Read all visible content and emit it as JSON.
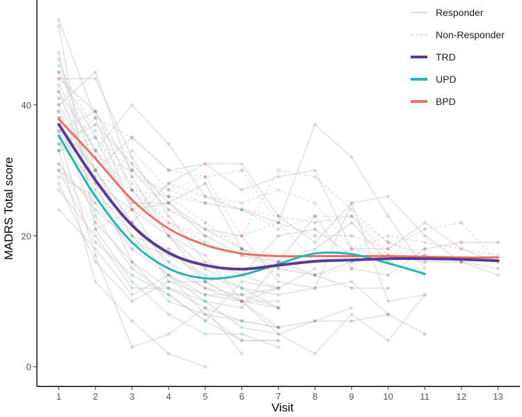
{
  "chart_data": {
    "type": "line",
    "xlabel": "Visit",
    "ylabel": "MADRS Total score",
    "xlim": [
      0.4,
      13.6
    ],
    "ylim": [
      -3,
      56
    ],
    "x_ticks": [
      1,
      2,
      3,
      4,
      5,
      6,
      7,
      8,
      9,
      10,
      11,
      12,
      13
    ],
    "y_ticks": [
      0,
      20,
      40
    ],
    "grid": false,
    "legend_position": "top-right",
    "legend": [
      {
        "label": "Responder",
        "kind": "solid",
        "color": "#d4d4d4"
      },
      {
        "label": "Non-Responder",
        "kind": "dashed",
        "color": "#d4d4d4"
      },
      {
        "label": "TRD",
        "kind": "thick",
        "color": "#5b3a93"
      },
      {
        "label": "UPD",
        "kind": "thick",
        "color": "#27b3b3"
      },
      {
        "label": "BPD",
        "kind": "thick",
        "color": "#ec6f63"
      }
    ],
    "series": [
      {
        "name": "TRD",
        "color": "#5b3a93",
        "x": [
          1,
          2,
          3,
          4,
          5,
          6,
          7,
          8,
          9,
          10,
          11,
          12,
          13
        ],
        "values": [
          37,
          28.5,
          21.6,
          17.4,
          15.5,
          14.9,
          15.5,
          16.1,
          16.3,
          16.5,
          16.5,
          16.4,
          16.2
        ]
      },
      {
        "name": "UPD",
        "color": "#27b3b3",
        "x": [
          1,
          2,
          3,
          4,
          5,
          6,
          7,
          8,
          9,
          10,
          11
        ],
        "values": [
          35.3,
          26,
          19,
          15,
          13.5,
          14,
          15.7,
          17.3,
          17.2,
          15.8,
          14.2
        ]
      },
      {
        "name": "BPD",
        "color": "#ec6f63",
        "x": [
          1,
          2,
          3,
          4,
          5,
          6,
          7,
          8,
          9,
          10,
          11,
          12,
          13
        ],
        "values": [
          37.8,
          31.8,
          25.5,
          21.1,
          18.6,
          17.3,
          16.9,
          16.9,
          16.9,
          16.9,
          16.8,
          16.7,
          16.7
        ]
      }
    ],
    "individual_trajectories": [
      {
        "group": "TRD",
        "responder": true,
        "values": [
          44,
          39,
          27,
          20,
          13,
          10,
          6
        ]
      },
      {
        "group": "TRD",
        "responder": true,
        "values": [
          38,
          30,
          22,
          16,
          12,
          11,
          9
        ]
      },
      {
        "group": "TRD",
        "responder": true,
        "values": [
          45,
          35,
          24,
          20,
          15,
          12,
          9
        ]
      },
      {
        "group": "TRD",
        "responder": true,
        "values": [
          36,
          39,
          30,
          24,
          21,
          18,
          15,
          14,
          16,
          17,
          16,
          16,
          15
        ]
      },
      {
        "group": "TRD",
        "responder": true,
        "values": [
          30,
          25,
          18,
          14,
          11,
          10,
          12
        ]
      },
      {
        "group": "TRD",
        "responder": true,
        "values": [
          42,
          33,
          25,
          25,
          20,
          17,
          16,
          14,
          12,
          12
        ]
      },
      {
        "group": "TRD",
        "responder": true,
        "values": [
          38,
          22,
          16,
          12,
          9,
          7,
          6,
          7,
          7,
          8,
          5
        ]
      },
      {
        "group": "TRD",
        "responder": true,
        "values": [
          40,
          30,
          20,
          18,
          13,
          14,
          20,
          21,
          17
        ]
      },
      {
        "group": "TRD",
        "responder": true,
        "values": [
          34,
          37,
          31,
          25,
          28,
          18,
          16,
          23,
          15,
          14,
          18,
          19,
          19
        ]
      },
      {
        "group": "TRD",
        "responder": false,
        "values": [
          41,
          32,
          30,
          26,
          25,
          24,
          23,
          22,
          23,
          19,
          17,
          16
        ]
      },
      {
        "group": "TRD",
        "responder": false,
        "values": [
          33,
          38,
          35,
          30,
          29,
          30,
          22,
          20,
          20,
          18,
          21,
          22,
          16
        ]
      },
      {
        "group": "TRD",
        "responder": false,
        "values": [
          39,
          29,
          27,
          26,
          22,
          18,
          14
        ]
      },
      {
        "group": "UPD",
        "responder": true,
        "values": [
          52,
          21,
          13,
          8,
          5,
          5,
          3
        ]
      },
      {
        "group": "UPD",
        "responder": true,
        "values": [
          48,
          23,
          15,
          11,
          7,
          4,
          4
        ]
      },
      {
        "group": "UPD",
        "responder": true,
        "values": [
          35,
          17,
          3,
          5,
          9,
          2
        ]
      },
      {
        "group": "UPD",
        "responder": true,
        "values": [
          33,
          13,
          7,
          2,
          0
        ]
      },
      {
        "group": "UPD",
        "responder": true,
        "values": [
          28,
          16,
          10,
          13,
          11,
          11,
          12
        ]
      },
      {
        "group": "UPD",
        "responder": true,
        "values": [
          34,
          28,
          16,
          10,
          8,
          7,
          6
        ]
      },
      {
        "group": "UPD",
        "responder": true,
        "values": [
          30,
          19,
          14,
          11,
          7,
          13,
          12
        ]
      },
      {
        "group": "UPD",
        "responder": true,
        "values": [
          27,
          20,
          12,
          12,
          10,
          9,
          16,
          18,
          22,
          16,
          14
        ]
      },
      {
        "group": "UPD",
        "responder": true,
        "values": [
          36,
          27,
          20,
          14,
          10,
          6,
          5,
          7,
          9
        ]
      },
      {
        "group": "UPD",
        "responder": true,
        "values": [
          31,
          24,
          19,
          17,
          14,
          12,
          11,
          12,
          13,
          8
        ]
      },
      {
        "group": "UPD",
        "responder": true,
        "values": [
          47,
          30,
          22,
          13,
          13,
          10,
          10
        ]
      },
      {
        "group": "UPD",
        "responder": true,
        "values": [
          43,
          33,
          40,
          34,
          26,
          24,
          22,
          37,
          32,
          23,
          15
        ]
      },
      {
        "group": "UPD",
        "responder": false,
        "values": [
          46,
          36,
          29,
          27,
          25,
          24,
          21,
          23,
          23,
          17
        ]
      },
      {
        "group": "UPD",
        "responder": false,
        "values": [
          33,
          35,
          28,
          22,
          19,
          17,
          15,
          14,
          15
        ]
      },
      {
        "group": "BPD",
        "responder": true,
        "values": [
          53,
          38,
          24,
          15,
          12,
          10,
          9
        ]
      },
      {
        "group": "BPD",
        "responder": true,
        "values": [
          44,
          44,
          32,
          23,
          16,
          14,
          12,
          15
        ]
      },
      {
        "group": "BPD",
        "responder": true,
        "values": [
          40,
          45,
          29,
          20,
          17,
          10,
          5,
          2,
          8,
          4,
          11
        ]
      },
      {
        "group": "BPD",
        "responder": true,
        "values": [
          29,
          26,
          22,
          28,
          31,
          31,
          23,
          19,
          25,
          26,
          20,
          16,
          14
        ]
      },
      {
        "group": "BPD",
        "responder": true,
        "values": [
          24,
          18,
          11,
          14,
          8,
          4,
          4
        ]
      },
      {
        "group": "BPD",
        "responder": true,
        "values": [
          37,
          30,
          35,
          30,
          31,
          27,
          29,
          30,
          18,
          18,
          22,
          18,
          16
        ]
      },
      {
        "group": "BPD",
        "responder": true,
        "values": [
          42,
          28,
          24,
          25,
          21,
          20,
          13,
          12,
          25,
          10,
          11
        ]
      },
      {
        "group": "BPD",
        "responder": false,
        "values": [
          45,
          33,
          27,
          22,
          20,
          20,
          30,
          29,
          24,
          19,
          17
        ]
      },
      {
        "group": "BPD",
        "responder": false,
        "values": [
          31,
          21,
          24,
          28,
          26,
          25,
          27,
          25,
          18,
          17,
          18
        ]
      },
      {
        "group": "BPD",
        "responder": false,
        "values": [
          39,
          26,
          33,
          27,
          29,
          20,
          22,
          16,
          18,
          20,
          19,
          18,
          17
        ]
      }
    ]
  }
}
